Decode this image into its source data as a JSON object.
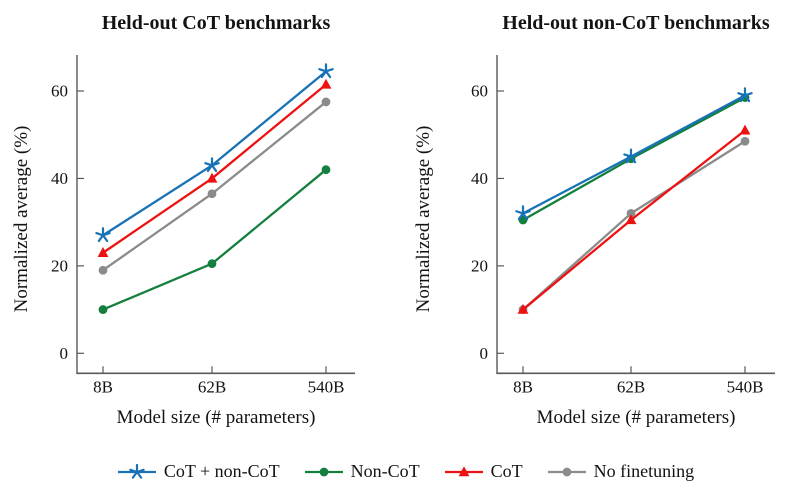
{
  "figure": {
    "legend": [
      {
        "label": "CoT + non-CoT",
        "series": "cot_plus_noncot",
        "marker": "star"
      },
      {
        "label": "Non-CoT",
        "series": "noncot",
        "marker": "circle"
      },
      {
        "label": "CoT",
        "series": "cot",
        "marker": "triangle"
      },
      {
        "label": "No finetuning",
        "series": "no_finetuning",
        "marker": "circle"
      }
    ],
    "legend_position": "bottom-center"
  },
  "colors": {
    "cot_plus_noncot": "#1772b6",
    "noncot": "#15803d",
    "cot": "#ee1111",
    "no_finetuning": "#8b8b8b",
    "axis": "#595959",
    "text": "#131313"
  },
  "chart_data": [
    {
      "type": "line",
      "title": "Held-out CoT benchmarks",
      "xlabel": "Model size (# parameters)",
      "ylabel": "Normalized average (%)",
      "categories": [
        "8B",
        "62B",
        "540B"
      ],
      "yticks": [
        0,
        20,
        40,
        60
      ],
      "ylim": [
        -4.5,
        68
      ],
      "grid": false,
      "series": [
        {
          "name": "Non-CoT",
          "key": "noncot",
          "marker": "circle",
          "values": [
            10,
            20.5,
            42
          ]
        },
        {
          "name": "No finetuning",
          "key": "no_finetuning",
          "marker": "circle",
          "values": [
            19,
            36.5,
            57.5
          ]
        },
        {
          "name": "CoT",
          "key": "cot",
          "marker": "triangle",
          "values": [
            23,
            40,
            61.5
          ]
        },
        {
          "name": "CoT + non-CoT",
          "key": "cot_plus_noncot",
          "marker": "star",
          "values": [
            27,
            43,
            64.5
          ]
        }
      ]
    },
    {
      "type": "line",
      "title": "Held-out non-CoT benchmarks",
      "xlabel": "Model size (# parameters)",
      "ylabel": "Normalized average (%)",
      "categories": [
        "8B",
        "62B",
        "540B"
      ],
      "yticks": [
        0,
        20,
        40,
        60
      ],
      "ylim": [
        -4.5,
        68
      ],
      "grid": false,
      "series": [
        {
          "name": "No finetuning",
          "key": "no_finetuning",
          "marker": "circle",
          "values": [
            10,
            32,
            48.5
          ]
        },
        {
          "name": "CoT",
          "key": "cot",
          "marker": "triangle",
          "values": [
            10,
            30.5,
            51
          ]
        },
        {
          "name": "Non-CoT",
          "key": "noncot",
          "marker": "circle",
          "values": [
            30.5,
            44.5,
            58.5
          ]
        },
        {
          "name": "CoT + non-CoT",
          "key": "cot_plus_noncot",
          "marker": "star",
          "values": [
            32,
            45,
            59
          ]
        }
      ]
    }
  ]
}
